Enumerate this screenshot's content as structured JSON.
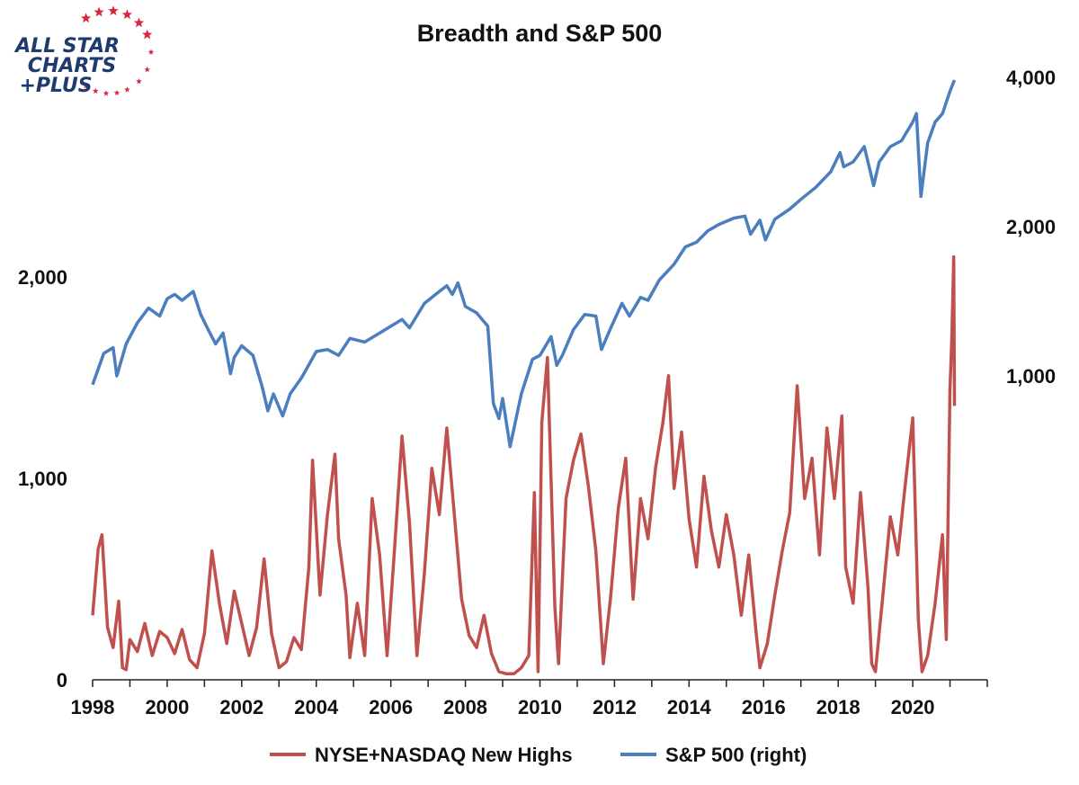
{
  "chart_data": {
    "type": "line",
    "title": "Breadth and S&P 500",
    "x_range": [
      1998.0,
      2022.0
    ],
    "x_ticks": [
      1998,
      2000,
      2002,
      2004,
      2006,
      2008,
      2010,
      2012,
      2014,
      2016,
      2018,
      2020
    ],
    "x_tick_labels": [
      "1998",
      "2000",
      "2002",
      "2004",
      "2006",
      "2008",
      "2010",
      "2012",
      "2014",
      "2016",
      "2018",
      "2020"
    ],
    "left_axis": {
      "ylim": [
        0,
        2200
      ],
      "ticks": [
        0,
        1000,
        2000
      ],
      "tick_labels": [
        "0",
        "1,000",
        "2,000"
      ],
      "scale": "linear"
    },
    "right_axis": {
      "ylim": [
        450,
        4300
      ],
      "ticks": [
        1000,
        2000,
        4000
      ],
      "tick_labels": [
        "1,000",
        "2,000",
        "4,000"
      ],
      "scale": "log"
    },
    "legend_position": "bottom-center",
    "series": [
      {
        "name": "NYSE+NASDAQ New Highs",
        "axis": "left",
        "color": "#c0504d",
        "points": [
          [
            1998.0,
            320
          ],
          [
            1998.15,
            650
          ],
          [
            1998.25,
            720
          ],
          [
            1998.4,
            260
          ],
          [
            1998.55,
            160
          ],
          [
            1998.7,
            390
          ],
          [
            1998.8,
            60
          ],
          [
            1998.9,
            50
          ],
          [
            1999.0,
            200
          ],
          [
            1999.2,
            140
          ],
          [
            1999.4,
            280
          ],
          [
            1999.6,
            120
          ],
          [
            1999.8,
            240
          ],
          [
            2000.0,
            210
          ],
          [
            2000.2,
            130
          ],
          [
            2000.4,
            250
          ],
          [
            2000.6,
            100
          ],
          [
            2000.8,
            60
          ],
          [
            2001.0,
            230
          ],
          [
            2001.2,
            640
          ],
          [
            2001.4,
            380
          ],
          [
            2001.6,
            180
          ],
          [
            2001.8,
            440
          ],
          [
            2002.0,
            280
          ],
          [
            2002.2,
            120
          ],
          [
            2002.4,
            260
          ],
          [
            2002.6,
            600
          ],
          [
            2002.8,
            230
          ],
          [
            2003.0,
            60
          ],
          [
            2003.2,
            90
          ],
          [
            2003.4,
            210
          ],
          [
            2003.6,
            150
          ],
          [
            2003.8,
            560
          ],
          [
            2003.9,
            1090
          ],
          [
            2004.1,
            420
          ],
          [
            2004.3,
            820
          ],
          [
            2004.5,
            1120
          ],
          [
            2004.6,
            700
          ],
          [
            2004.8,
            420
          ],
          [
            2004.9,
            110
          ],
          [
            2005.1,
            380
          ],
          [
            2005.3,
            120
          ],
          [
            2005.5,
            900
          ],
          [
            2005.7,
            620
          ],
          [
            2005.9,
            120
          ],
          [
            2006.1,
            650
          ],
          [
            2006.3,
            1210
          ],
          [
            2006.5,
            780
          ],
          [
            2006.7,
            120
          ],
          [
            2006.9,
            530
          ],
          [
            2007.1,
            1050
          ],
          [
            2007.3,
            820
          ],
          [
            2007.5,
            1250
          ],
          [
            2007.7,
            830
          ],
          [
            2007.9,
            400
          ],
          [
            2008.1,
            220
          ],
          [
            2008.3,
            160
          ],
          [
            2008.5,
            320
          ],
          [
            2008.7,
            130
          ],
          [
            2008.9,
            40
          ],
          [
            2009.1,
            30
          ],
          [
            2009.3,
            30
          ],
          [
            2009.5,
            60
          ],
          [
            2009.7,
            120
          ],
          [
            2009.85,
            930
          ],
          [
            2009.95,
            40
          ],
          [
            2010.05,
            1280
          ],
          [
            2010.2,
            1600
          ],
          [
            2010.4,
            360
          ],
          [
            2010.5,
            80
          ],
          [
            2010.7,
            900
          ],
          [
            2010.9,
            1090
          ],
          [
            2011.1,
            1220
          ],
          [
            2011.3,
            960
          ],
          [
            2011.5,
            640
          ],
          [
            2011.7,
            80
          ],
          [
            2011.9,
            420
          ],
          [
            2012.1,
            850
          ],
          [
            2012.3,
            1100
          ],
          [
            2012.5,
            400
          ],
          [
            2012.7,
            900
          ],
          [
            2012.9,
            700
          ],
          [
            2013.1,
            1050
          ],
          [
            2013.3,
            1280
          ],
          [
            2013.45,
            1510
          ],
          [
            2013.6,
            950
          ],
          [
            2013.8,
            1230
          ],
          [
            2014.0,
            800
          ],
          [
            2014.2,
            560
          ],
          [
            2014.4,
            1010
          ],
          [
            2014.6,
            740
          ],
          [
            2014.8,
            560
          ],
          [
            2015.0,
            820
          ],
          [
            2015.2,
            620
          ],
          [
            2015.4,
            320
          ],
          [
            2015.6,
            620
          ],
          [
            2015.8,
            230
          ],
          [
            2015.9,
            60
          ],
          [
            2016.1,
            180
          ],
          [
            2016.3,
            420
          ],
          [
            2016.5,
            640
          ],
          [
            2016.7,
            830
          ],
          [
            2016.9,
            1460
          ],
          [
            2017.1,
            900
          ],
          [
            2017.3,
            1100
          ],
          [
            2017.5,
            620
          ],
          [
            2017.7,
            1250
          ],
          [
            2017.9,
            900
          ],
          [
            2018.1,
            1310
          ],
          [
            2018.2,
            560
          ],
          [
            2018.4,
            380
          ],
          [
            2018.6,
            930
          ],
          [
            2018.8,
            460
          ],
          [
            2018.9,
            80
          ],
          [
            2019.0,
            40
          ],
          [
            2019.2,
            420
          ],
          [
            2019.4,
            810
          ],
          [
            2019.6,
            620
          ],
          [
            2019.8,
            970
          ],
          [
            2020.0,
            1300
          ],
          [
            2020.15,
            300
          ],
          [
            2020.25,
            40
          ],
          [
            2020.4,
            120
          ],
          [
            2020.6,
            380
          ],
          [
            2020.8,
            720
          ],
          [
            2020.9,
            200
          ],
          [
            2021.0,
            1440
          ],
          [
            2021.05,
            1700
          ],
          [
            2021.1,
            2100
          ],
          [
            2021.12,
            1360
          ]
        ]
      },
      {
        "name": "S&P 500 (right)",
        "axis": "right",
        "color": "#4a7ebf",
        "points": [
          [
            1998.0,
            960
          ],
          [
            1998.3,
            1110
          ],
          [
            1998.55,
            1140
          ],
          [
            1998.65,
            1000
          ],
          [
            1998.9,
            1160
          ],
          [
            1999.2,
            1280
          ],
          [
            1999.5,
            1370
          ],
          [
            1999.8,
            1320
          ],
          [
            2000.0,
            1430
          ],
          [
            2000.2,
            1460
          ],
          [
            2000.4,
            1420
          ],
          [
            2000.7,
            1480
          ],
          [
            2000.9,
            1330
          ],
          [
            2001.1,
            1240
          ],
          [
            2001.3,
            1160
          ],
          [
            2001.5,
            1220
          ],
          [
            2001.7,
            1010
          ],
          [
            2001.8,
            1090
          ],
          [
            2002.0,
            1150
          ],
          [
            2002.3,
            1100
          ],
          [
            2002.55,
            950
          ],
          [
            2002.7,
            850
          ],
          [
            2002.85,
            920
          ],
          [
            2003.1,
            830
          ],
          [
            2003.3,
            920
          ],
          [
            2003.6,
            990
          ],
          [
            2004.0,
            1120
          ],
          [
            2004.3,
            1130
          ],
          [
            2004.6,
            1100
          ],
          [
            2004.9,
            1190
          ],
          [
            2005.3,
            1170
          ],
          [
            2005.7,
            1220
          ],
          [
            2006.0,
            1260
          ],
          [
            2006.3,
            1300
          ],
          [
            2006.5,
            1250
          ],
          [
            2006.9,
            1400
          ],
          [
            2007.3,
            1480
          ],
          [
            2007.5,
            1520
          ],
          [
            2007.65,
            1460
          ],
          [
            2007.8,
            1540
          ],
          [
            2008.0,
            1380
          ],
          [
            2008.3,
            1340
          ],
          [
            2008.6,
            1260
          ],
          [
            2008.75,
            880
          ],
          [
            2008.9,
            820
          ],
          [
            2009.0,
            900
          ],
          [
            2009.2,
            720
          ],
          [
            2009.5,
            920
          ],
          [
            2009.8,
            1080
          ],
          [
            2010.0,
            1100
          ],
          [
            2010.3,
            1200
          ],
          [
            2010.45,
            1050
          ],
          [
            2010.6,
            1100
          ],
          [
            2010.9,
            1240
          ],
          [
            2011.2,
            1330
          ],
          [
            2011.5,
            1320
          ],
          [
            2011.65,
            1130
          ],
          [
            2011.9,
            1250
          ],
          [
            2012.2,
            1400
          ],
          [
            2012.4,
            1320
          ],
          [
            2012.7,
            1440
          ],
          [
            2012.9,
            1420
          ],
          [
            2013.2,
            1560
          ],
          [
            2013.6,
            1680
          ],
          [
            2013.9,
            1820
          ],
          [
            2014.2,
            1860
          ],
          [
            2014.5,
            1960
          ],
          [
            2014.8,
            2020
          ],
          [
            2015.2,
            2080
          ],
          [
            2015.5,
            2100
          ],
          [
            2015.65,
            1930
          ],
          [
            2015.9,
            2060
          ],
          [
            2016.05,
            1880
          ],
          [
            2016.3,
            2070
          ],
          [
            2016.7,
            2170
          ],
          [
            2017.0,
            2270
          ],
          [
            2017.4,
            2400
          ],
          [
            2017.8,
            2580
          ],
          [
            2018.05,
            2820
          ],
          [
            2018.15,
            2640
          ],
          [
            2018.4,
            2700
          ],
          [
            2018.7,
            2900
          ],
          [
            2018.95,
            2420
          ],
          [
            2019.1,
            2700
          ],
          [
            2019.4,
            2900
          ],
          [
            2019.7,
            2980
          ],
          [
            2020.0,
            3250
          ],
          [
            2020.1,
            3380
          ],
          [
            2020.22,
            2300
          ],
          [
            2020.4,
            2950
          ],
          [
            2020.6,
            3250
          ],
          [
            2020.8,
            3380
          ],
          [
            2021.0,
            3750
          ],
          [
            2021.12,
            3950
          ]
        ]
      }
    ]
  },
  "logo": {
    "line1": "ALL STAR",
    "line2": "CHARTS",
    "line3": "+PLUS",
    "star_color": "#d7263d",
    "text_color": "#1f3a6e"
  }
}
